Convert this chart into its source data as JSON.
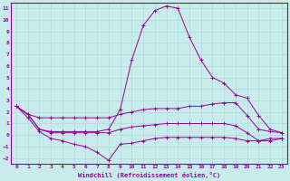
{
  "xlabel": "Windchill (Refroidissement éolien,°C)",
  "background_color": "#c8ecec",
  "grid_color": "#b0d8d8",
  "line_color": "#990099",
  "xlim": [
    -0.5,
    23.5
  ],
  "ylim": [
    -2.5,
    11.5
  ],
  "xticks": [
    0,
    1,
    2,
    3,
    4,
    5,
    6,
    7,
    8,
    9,
    10,
    11,
    12,
    13,
    14,
    15,
    16,
    17,
    18,
    19,
    20,
    21,
    22,
    23
  ],
  "yticks": [
    -2,
    -1,
    0,
    1,
    2,
    3,
    4,
    5,
    6,
    7,
    8,
    9,
    10,
    11
  ],
  "series": [
    {
      "x": [
        0,
        1,
        2,
        3,
        4,
        5,
        6,
        7,
        8,
        9,
        10,
        11,
        12,
        13,
        14,
        15,
        16,
        17,
        18,
        19,
        20,
        21,
        22,
        23
      ],
      "y": [
        2.5,
        1.8,
        0.5,
        0.3,
        0.3,
        0.3,
        0.3,
        0.3,
        0.5,
        2.2,
        6.5,
        9.5,
        10.8,
        11.2,
        11.0,
        8.5,
        6.5,
        5.0,
        4.5,
        3.5,
        3.2,
        1.7,
        0.5,
        0.2
      ]
    },
    {
      "x": [
        0,
        1,
        2,
        3,
        4,
        5,
        6,
        7,
        8,
        9,
        10,
        11,
        12,
        13,
        14,
        15,
        16,
        17,
        18,
        19,
        20,
        21,
        22,
        23
      ],
      "y": [
        2.5,
        1.8,
        1.5,
        1.5,
        1.5,
        1.5,
        1.5,
        1.5,
        1.5,
        1.8,
        2.0,
        2.2,
        2.3,
        2.3,
        2.3,
        2.5,
        2.5,
        2.7,
        2.8,
        2.8,
        1.7,
        0.5,
        0.3,
        0.2
      ]
    },
    {
      "x": [
        0,
        1,
        2,
        3,
        4,
        5,
        6,
        7,
        8,
        9,
        10,
        11,
        12,
        13,
        14,
        15,
        16,
        17,
        18,
        19,
        20,
        21,
        22,
        23
      ],
      "y": [
        2.5,
        1.8,
        0.5,
        0.2,
        0.2,
        0.2,
        0.2,
        0.2,
        0.2,
        0.5,
        0.7,
        0.8,
        0.9,
        1.0,
        1.0,
        1.0,
        1.0,
        1.0,
        1.0,
        0.8,
        0.2,
        -0.5,
        -0.5,
        -0.3
      ]
    },
    {
      "x": [
        0,
        1,
        2,
        3,
        4,
        5,
        6,
        7,
        8,
        9,
        10,
        11,
        12,
        13,
        14,
        15,
        16,
        17,
        18,
        19,
        20,
        21,
        22,
        23
      ],
      "y": [
        2.5,
        1.5,
        0.3,
        -0.3,
        -0.5,
        -0.8,
        -1.0,
        -1.5,
        -2.2,
        -0.8,
        -0.7,
        -0.5,
        -0.3,
        -0.2,
        -0.2,
        -0.2,
        -0.2,
        -0.2,
        -0.2,
        -0.3,
        -0.5,
        -0.5,
        -0.3,
        -0.3
      ]
    }
  ]
}
